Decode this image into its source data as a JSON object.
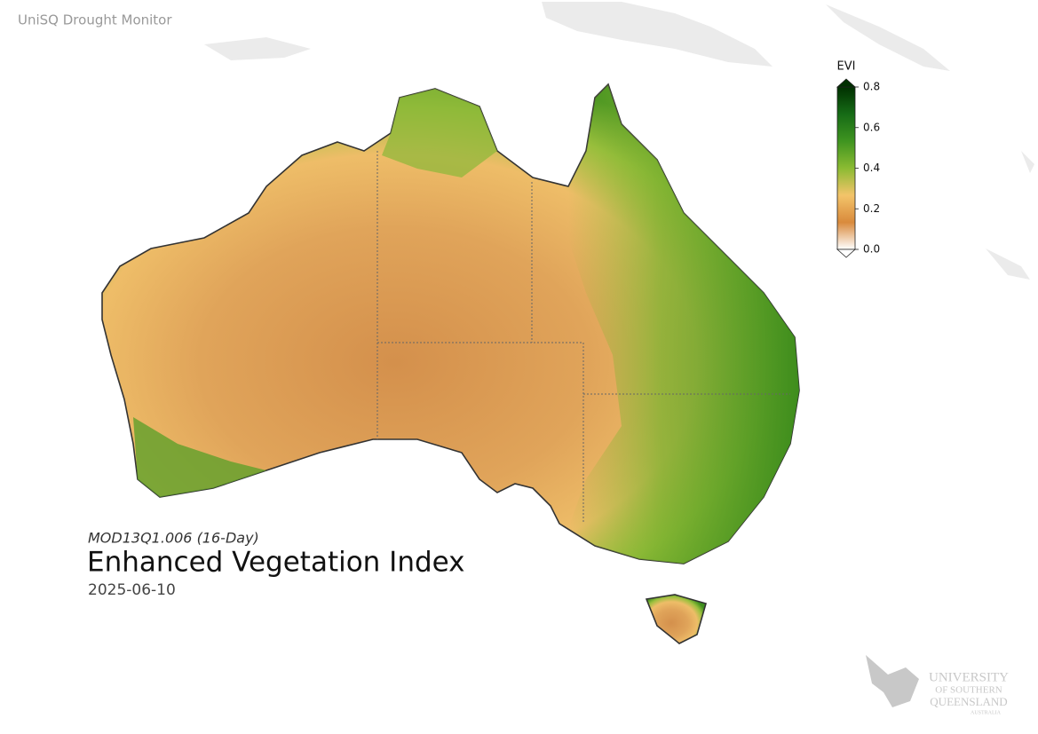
{
  "header": {
    "title": "UniSQ Drought Monitor"
  },
  "colorbar": {
    "title": "EVI",
    "lim": [
      0,
      0.8
    ],
    "ticks": [
      {
        "value": 0,
        "label": "0.0"
      },
      0.2,
      0.4,
      0.6,
      0.8
    ],
    "colors": [
      "#ffffff",
      "#d98a3c",
      "#f3c46a",
      "#8bbb32",
      "#3f9420",
      "#166b16",
      "#003000"
    ]
  },
  "caption": {
    "product": "MOD13Q1.006 (16-Day)",
    "title": "Enhanced Vegetation Index",
    "date": "2025-06-10"
  },
  "logo": {
    "line1": "UNIVERSITY",
    "line2": "OF SOUTHERN",
    "line3": "QUEENSLAND",
    "line4": "AUSTRALIA"
  }
}
